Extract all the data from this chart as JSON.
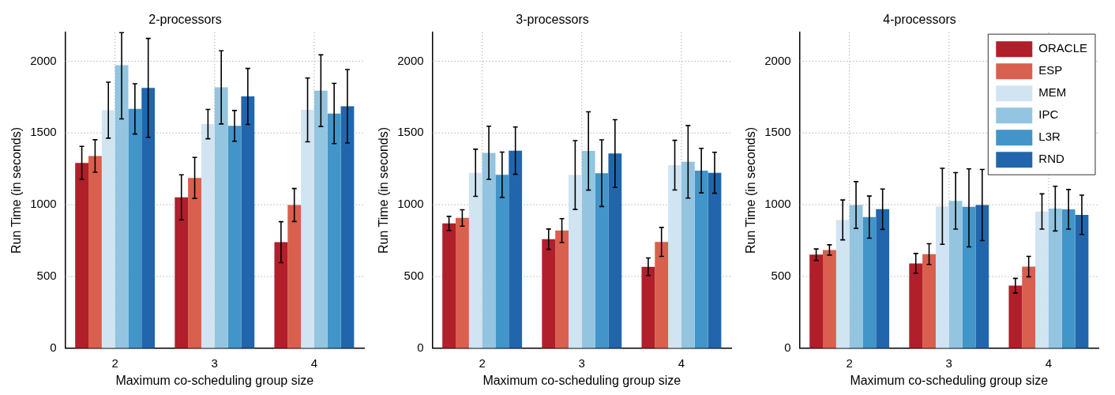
{
  "chart_data": [
    {
      "type": "bar",
      "title": "2-processors",
      "xlabel": "Maximum co-scheduling group size",
      "ylabel": "Run Time (in seconds)",
      "categories": [
        "2",
        "3",
        "4"
      ],
      "ylim": [
        0,
        2200
      ],
      "yticks": [
        0,
        500,
        1000,
        1500,
        2000
      ],
      "grid": true,
      "series": [
        {
          "color": "#b01f2a",
          "values": [
            1292,
            1052,
            739
          ],
          "errors": [
            115,
            157,
            143
          ]
        },
        {
          "color": "#d95f4e",
          "values": [
            1340,
            1187,
            998
          ],
          "errors": [
            113,
            143,
            115
          ]
        },
        {
          "color": "#d0e4f2",
          "values": [
            1659,
            1562,
            1661
          ],
          "errors": [
            195,
            102,
            222
          ]
        },
        {
          "color": "#93c4e0",
          "values": [
            1973,
            1818,
            1795
          ],
          "errors": [
            [
              1598,
              2200
            ],
            255,
            250
          ]
        },
        {
          "color": "#4195c8",
          "values": [
            1668,
            1550,
            1636
          ],
          "errors": [
            175,
            107,
            210
          ]
        },
        {
          "color": "#2166ac",
          "values": [
            1814,
            1755,
            1686
          ],
          "errors": [
            345,
            195,
            256
          ]
        }
      ]
    },
    {
      "type": "bar",
      "title": "3-processors",
      "xlabel": "Maximum co-scheduling group size",
      "ylabel": "Run Time (in seconds)",
      "categories": [
        "2",
        "3",
        "4"
      ],
      "ylim": [
        0,
        2200
      ],
      "yticks": [
        0,
        500,
        1000,
        1500,
        2000
      ],
      "grid": true,
      "series": [
        {
          "color": "#b01f2a",
          "values": [
            870,
            760,
            568
          ],
          "errors": [
            49,
            71,
            61
          ]
        },
        {
          "color": "#d95f4e",
          "values": [
            908,
            820,
            741
          ],
          "errors": [
            57,
            83,
            101
          ]
        },
        {
          "color": "#d0e4f2",
          "values": [
            1223,
            1207,
            1276
          ],
          "errors": [
            164,
            240,
            173
          ]
        },
        {
          "color": "#93c4e0",
          "values": [
            1362,
            1375,
            1299
          ],
          "errors": [
            185,
            273,
            253
          ]
        },
        {
          "color": "#4195c8",
          "values": [
            1209,
            1220,
            1238
          ],
          "errors": [
            158,
            232,
            155
          ]
        },
        {
          "color": "#2166ac",
          "values": [
            1377,
            1357,
            1223
          ],
          "errors": [
            165,
            236,
            143
          ]
        }
      ]
    },
    {
      "type": "bar",
      "title": "4-processors",
      "xlabel": "Maximum co-scheduling group size",
      "ylabel": "Run Time (in seconds)",
      "categories": [
        "2",
        "3",
        "4"
      ],
      "ylim": [
        0,
        2200
      ],
      "yticks": [
        0,
        500,
        1000,
        1500,
        2000
      ],
      "grid": true,
      "legend": "top right",
      "series": [
        {
          "name": "ORACLE",
          "color": "#b01f2a",
          "values": [
            652,
            591,
            436
          ],
          "errors": [
            40,
            69,
            51
          ]
        },
        {
          "name": "ESP",
          "color": "#d95f4e",
          "values": [
            685,
            656,
            569
          ],
          "errors": [
            36,
            72,
            71
          ]
        },
        {
          "name": "MEM",
          "color": "#d0e4f2",
          "values": [
            894,
            989,
            953
          ],
          "errors": [
            139,
            265,
            123
          ]
        },
        {
          "name": "IPC",
          "color": "#93c4e0",
          "values": [
            998,
            1027,
            973
          ],
          "errors": [
            163,
            197,
            156
          ]
        },
        {
          "name": "L3R",
          "color": "#4195c8",
          "values": [
            914,
            986,
            968
          ],
          "errors": [
            147,
            [
              706,
              1250
            ],
            138
          ]
        },
        {
          "name": "RND",
          "color": "#2166ac",
          "values": [
            969,
            998,
            930
          ],
          "errors": [
            141,
            248,
            137
          ]
        }
      ]
    }
  ]
}
